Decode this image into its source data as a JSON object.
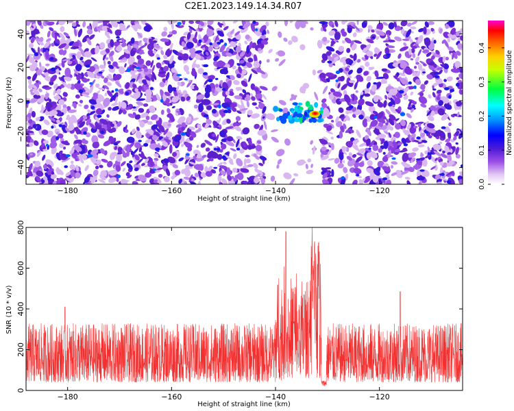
{
  "title": "C2E1.2023.149.14.34.R07",
  "colors": {
    "line": "#f23030",
    "spectrogram": [
      "#ffffff",
      "#e6c8f5",
      "#b07ae8",
      "#7a2ed8",
      "#5a1fcc",
      "#1a1ae6",
      "#0050ff",
      "#00c8ff",
      "#00e070",
      "#e0e000",
      "#ff8000",
      "#ff0000",
      "#ff00c0"
    ]
  },
  "chart_data": [
    {
      "type": "heatmap",
      "title": "C2E1.2023.149.14.34.R07",
      "xlabel": "Height of straight line (km)",
      "ylabel": "Frequency (Hz)",
      "xlim": [
        -188,
        -104
      ],
      "ylim": [
        -50,
        48
      ],
      "xticks": [
        -180,
        -160,
        -140,
        -120
      ],
      "yticks": [
        -40,
        -20,
        0,
        20,
        40
      ],
      "colorbar": {
        "label": "Normalized spectral amplitude",
        "range": [
          0,
          0.48
        ],
        "ticks": [
          "0.0",
          "0.1",
          "0.2",
          "0.3",
          "0.4"
        ]
      },
      "features": [
        {
          "x_range": [
            -140,
            -131
          ],
          "y": -7,
          "peak_value": 0.45,
          "description_label": ""
        }
      ],
      "noise_level": 0.08,
      "gap_x_range": [
        -142,
        -131
      ]
    },
    {
      "type": "line",
      "xlabel": "Height of straight line (km)",
      "ylabel": "SNR (10 * v/v)",
      "xlim": [
        -188,
        -104
      ],
      "ylim": [
        0,
        800
      ],
      "xticks": [
        -180,
        -160,
        -140,
        -120
      ],
      "yticks": [
        0,
        200,
        400,
        600,
        800
      ],
      "baseline_mean": 130,
      "baseline_range": [
        40,
        330
      ],
      "peaks": [
        {
          "x": -180.5,
          "y": 410
        },
        {
          "x": -138,
          "y": 780
        },
        {
          "x": -136.5,
          "y": 330
        },
        {
          "x": -134.5,
          "y": 470
        },
        {
          "x": -133,
          "y": 800
        },
        {
          "x": -132.5,
          "y": 730
        },
        {
          "x": -131.7,
          "y": 725
        },
        {
          "x": -116,
          "y": 485
        }
      ],
      "gap_x_range": [
        -131.2,
        -130.2
      ]
    }
  ]
}
